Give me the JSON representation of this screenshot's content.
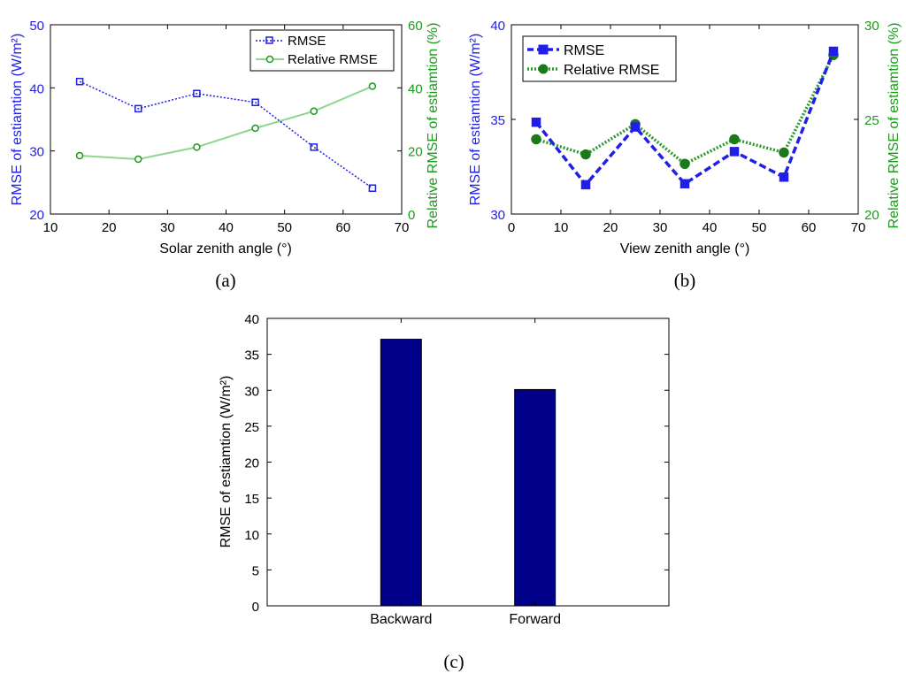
{
  "colors": {
    "rmse": "#1f1fe8",
    "relative_rmse_a": "#8fd68f",
    "relative_rmse_b": "#2a9a2a",
    "right_axis": "#1a9a1a",
    "bar": "#00008b",
    "axis": "#000000"
  },
  "chart_data": [
    {
      "panel": "(a)",
      "type": "line",
      "xlabel": "Solar zenith angle (°)",
      "ylabel": "RMSE of estiamtion (W/m²)",
      "y2label": "Relative RMSE of estiamtion (%)",
      "xlim": [
        10,
        70
      ],
      "ylim": [
        20,
        50
      ],
      "y2lim": [
        0,
        60
      ],
      "xticks": [
        "10",
        "20",
        "30",
        "40",
        "50",
        "60",
        "70"
      ],
      "yticks": [
        "20",
        "30",
        "40",
        "50"
      ],
      "y2ticks": [
        "0",
        "20",
        "40",
        "60"
      ],
      "grid": false,
      "legend": "top-right",
      "x": [
        15,
        25,
        35,
        45,
        55,
        65
      ],
      "series": [
        {
          "name": "RMSE",
          "axis": "left",
          "marker": "square",
          "values": [
            41.0,
            36.7,
            39.1,
            37.7,
            30.6,
            24.1
          ]
        },
        {
          "name": "Relative RMSE",
          "axis": "right",
          "marker": "circle",
          "values": [
            18.5,
            17.4,
            21.2,
            27.2,
            32.6,
            40.5
          ]
        }
      ]
    },
    {
      "panel": "(b)",
      "type": "line",
      "xlabel": "View zenith angle (°)",
      "ylabel": "RMSE of estiamtion (W/m²)",
      "y2label": "Relative RMSE of estiamtion (%)",
      "xlim": [
        0,
        70
      ],
      "ylim": [
        30,
        40
      ],
      "y2lim": [
        20,
        30
      ],
      "xticks": [
        "0",
        "10",
        "20",
        "30",
        "40",
        "50",
        "60",
        "70"
      ],
      "yticks": [
        "30",
        "35",
        "40"
      ],
      "y2ticks": [
        "20",
        "25",
        "30"
      ],
      "grid": false,
      "legend": "top-left",
      "x": [
        5,
        15,
        25,
        35,
        45,
        55,
        65
      ],
      "series": [
        {
          "name": "RMSE",
          "axis": "left",
          "marker": "square",
          "values": [
            34.85,
            31.55,
            34.6,
            31.6,
            33.3,
            31.95,
            38.6
          ]
        },
        {
          "name": "Relative RMSE",
          "axis": "right",
          "marker": "circle",
          "values": [
            23.95,
            23.15,
            24.75,
            22.65,
            23.95,
            23.25,
            28.4
          ]
        }
      ]
    },
    {
      "panel": "(c)",
      "type": "bar",
      "xlabel": "",
      "ylabel": "RMSE of estiamtion (W/m²)",
      "ylim": [
        0,
        40
      ],
      "yticks": [
        "0",
        "5",
        "10",
        "15",
        "20",
        "25",
        "30",
        "35",
        "40"
      ],
      "grid": false,
      "categories": [
        "Backward",
        "Forward"
      ],
      "values": [
        37.1,
        30.1
      ]
    }
  ]
}
